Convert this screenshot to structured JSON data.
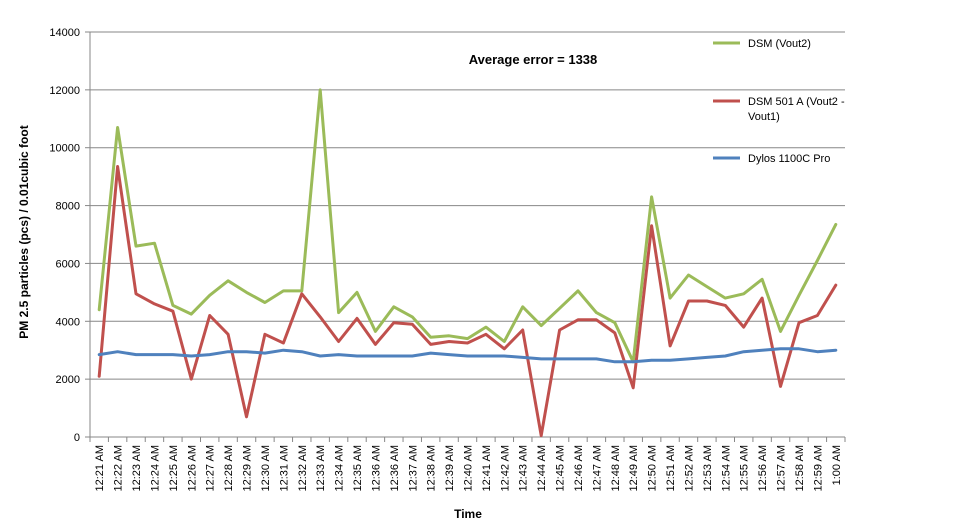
{
  "chart_data": {
    "type": "line",
    "title": "",
    "annotation": "Average error = 1338",
    "xlabel": "Time",
    "ylabel": "PM 2.5 particles (pcs) / 0.01cubic foot",
    "ylim": [
      0,
      14000
    ],
    "yticks": [
      "0",
      "2000",
      "4000",
      "6000",
      "8000",
      "10000",
      "12000",
      "14000"
    ],
    "grid": true,
    "legend_position": "right",
    "categories": [
      "12:21 AM",
      "12:22 AM",
      "12:23 AM",
      "12:24 AM",
      "12:25 AM",
      "12:26 AM",
      "12:27 AM",
      "12:28 AM",
      "12:29 AM",
      "12:30 AM",
      "12:31 AM",
      "12:32 AM",
      "12:33 AM",
      "12:34 AM",
      "12:35 AM",
      "12:36 AM",
      "12:36 AM",
      "12:37 AM",
      "12:38 AM",
      "12:39 AM",
      "12:40 AM",
      "12:41 AM",
      "12:42 AM",
      "12:43 AM",
      "12:44 AM",
      "12:45 AM",
      "12:46 AM",
      "12:47 AM",
      "12:48 AM",
      "12:49 AM",
      "12:50 AM",
      "12:51 AM",
      "12:52 AM",
      "12:53 AM",
      "12:54 AM",
      "12:55 AM",
      "12:56 AM",
      "12:57 AM",
      "12:58 AM",
      "12:59 AM",
      "1:00 AM"
    ],
    "series": [
      {
        "name": "DSM  (Vout2)",
        "color": "#9bbb59",
        "legend_lines": [
          "DSM  (Vout2)"
        ],
        "values": [
          4400,
          10700,
          6600,
          6700,
          4550,
          4250,
          4900,
          5400,
          5000,
          4650,
          5050,
          5050,
          12000,
          4300,
          5000,
          3650,
          4500,
          4150,
          3450,
          3500,
          3400,
          3800,
          3300,
          4500,
          3850,
          4450,
          5050,
          4300,
          3950,
          2600,
          8300,
          4800,
          5600,
          5200,
          4800,
          4950,
          5450,
          3650,
          4900,
          6100,
          7350
        ]
      },
      {
        "name": "DSM 501 A (Vout2 - Vout1)",
        "color": "#c0504d",
        "legend_lines": [
          "DSM 501 A (Vout2  -",
          "Vout1)"
        ],
        "values": [
          2100,
          9350,
          4950,
          4600,
          4350,
          2000,
          4200,
          3550,
          700,
          3550,
          3250,
          4950,
          4150,
          3300,
          4100,
          3200,
          3950,
          3900,
          3200,
          3300,
          3250,
          3550,
          3050,
          3700,
          50,
          3700,
          4050,
          4050,
          3600,
          1700,
          7300,
          3150,
          4700,
          4700,
          4550,
          3800,
          4800,
          1750,
          3950,
          4200,
          5250
        ]
      },
      {
        "name": "Dylos 1100C Pro",
        "color": "#4f81bd",
        "legend_lines": [
          "Dylos 1100C Pro"
        ],
        "values": [
          2850,
          2950,
          2850,
          2850,
          2850,
          2800,
          2850,
          2950,
          2950,
          2900,
          3000,
          2950,
          2800,
          2850,
          2800,
          2800,
          2800,
          2800,
          2900,
          2850,
          2800,
          2800,
          2800,
          2750,
          2700,
          2700,
          2700,
          2700,
          2600,
          2600,
          2650,
          2650,
          2700,
          2750,
          2800,
          2950,
          3000,
          3050,
          3050,
          2950,
          3000
        ]
      }
    ]
  }
}
